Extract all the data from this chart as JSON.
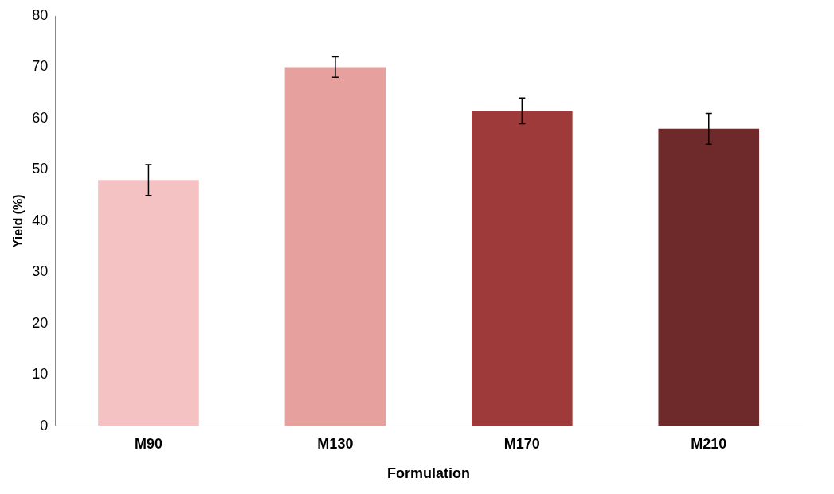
{
  "chart_data": {
    "type": "bar",
    "xlabel": "Formulation",
    "ylabel": "Yield (%)",
    "categories": [
      "M90",
      "M130",
      "M170",
      "M210"
    ],
    "values": [
      48,
      70,
      61.5,
      58
    ],
    "errors": [
      3,
      2,
      2.5,
      3
    ],
    "colors": [
      "#f4c2c2",
      "#e6a19e",
      "#9e3a39",
      "#6e2a2a"
    ],
    "ylim": [
      0,
      80
    ],
    "yticks": [
      0,
      10,
      20,
      30,
      40,
      50,
      60,
      70,
      80
    ],
    "grid": false
  }
}
